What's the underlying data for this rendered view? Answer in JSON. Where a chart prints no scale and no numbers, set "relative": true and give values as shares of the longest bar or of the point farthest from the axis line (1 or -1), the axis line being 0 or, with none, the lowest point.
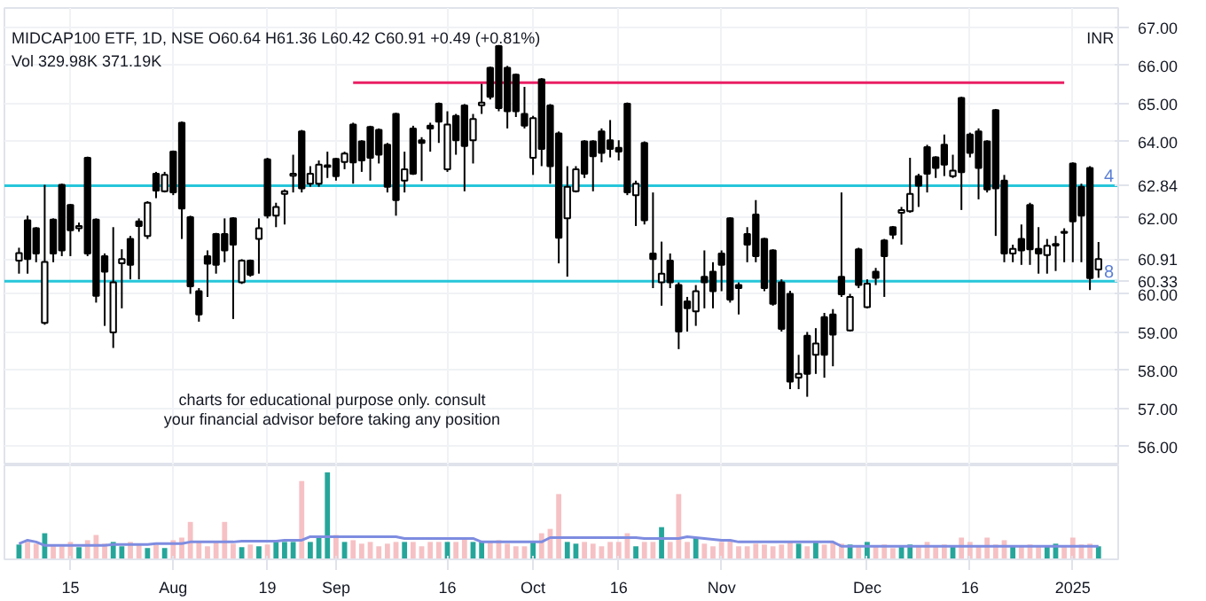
{
  "chart_data": [
    {
      "type": "candlestick",
      "title": "MIDCAP100 ETF, 1D, NSE",
      "subtitle": "O60.64  H61.36  L60.42  C60.91  +0.49 (+0.81%)",
      "annotations": [
        "Vol  329.98K  371.19K",
        "INR",
        "charts for educational purpose only. consult your financial advisor before taking any position",
        {
          "text": "4",
          "y": 62.84
        },
        {
          "text": "8",
          "y": 60.33
        }
      ],
      "categories": [
        null,
        null,
        null,
        null,
        null,
        null,
        "15",
        null,
        null,
        null,
        null,
        null,
        null,
        null,
        null,
        null,
        null,
        null,
        "Aug",
        null,
        null,
        null,
        null,
        null,
        null,
        null,
        null,
        null,
        null,
        "19",
        null,
        null,
        null,
        null,
        null,
        null,
        null,
        "Sep",
        null,
        null,
        null,
        null,
        null,
        null,
        null,
        null,
        null,
        null,
        null,
        null,
        "16",
        null,
        null,
        null,
        null,
        null,
        null,
        null,
        null,
        null,
        "Oct",
        null,
        null,
        null,
        null,
        null,
        null,
        null,
        null,
        null,
        "16",
        null,
        null,
        null,
        null,
        null,
        null,
        null,
        null,
        null,
        null,
        null,
        "Nov",
        null,
        null,
        null,
        null,
        null,
        null,
        null,
        null,
        null,
        null,
        null,
        null,
        null,
        null,
        null,
        null,
        "Dec",
        null,
        null,
        null,
        null,
        null,
        null,
        null,
        null,
        null,
        null,
        null,
        "16",
        null,
        null,
        null,
        null,
        null,
        null,
        null,
        null,
        null,
        null,
        null,
        "2025",
        null,
        null,
        null
      ],
      "ohlc": [
        [
          60.87,
          61.21,
          60.53,
          61.07
        ],
        [
          61.93,
          62.05,
          60.53,
          60.91
        ],
        [
          61.72,
          61.75,
          60.83,
          61.06
        ],
        [
          59.24,
          62.86,
          59.19,
          60.84
        ],
        [
          61.95,
          61.98,
          60.83,
          61.06
        ],
        [
          62.86,
          62.89,
          60.99,
          61.14
        ],
        [
          62.33,
          62.36,
          60.99,
          61.67
        ],
        [
          61.72,
          61.87,
          61.63,
          61.78
        ],
        [
          63.57,
          63.6,
          60.99,
          61.06
        ],
        [
          61.95,
          61.98,
          59.77,
          59.95
        ],
        [
          60.99,
          61.06,
          59.16,
          60.58
        ],
        [
          58.99,
          61.75,
          58.58,
          60.3
        ],
        [
          60.8,
          61.17,
          59.62,
          60.91
        ],
        [
          61.44,
          61.52,
          60.38,
          60.76
        ],
        [
          61.9,
          61.98,
          60.38,
          61.78
        ],
        [
          61.52,
          62.43,
          61.44,
          62.39
        ],
        [
          63.15,
          63.2,
          62.51,
          62.71
        ],
        [
          62.69,
          63.2,
          62.66,
          63.12
        ],
        [
          63.73,
          63.76,
          62.59,
          62.66
        ],
        [
          64.49,
          64.52,
          61.44,
          62.24
        ],
        [
          62.01,
          62.05,
          60.0,
          60.2
        ],
        [
          60.07,
          60.15,
          59.27,
          59.46
        ],
        [
          60.99,
          61.14,
          59.92,
          60.79
        ],
        [
          61.57,
          61.6,
          60.53,
          60.76
        ],
        [
          61.57,
          61.98,
          60.83,
          61.14
        ],
        [
          61.98,
          62.01,
          59.34,
          61.29
        ],
        [
          60.3,
          60.91,
          60.26,
          60.87
        ],
        [
          60.87,
          60.9,
          60.45,
          60.5
        ],
        [
          61.44,
          61.98,
          60.53,
          61.72
        ],
        [
          63.53,
          63.57,
          61.98,
          62.05
        ],
        [
          62.05,
          62.39,
          61.75,
          62.28
        ],
        [
          62.62,
          62.74,
          61.82,
          62.69
        ],
        [
          63.1,
          63.65,
          62.66,
          63.15
        ],
        [
          64.26,
          64.3,
          62.66,
          62.77
        ],
        [
          62.89,
          63.35,
          62.81,
          63.15
        ],
        [
          62.89,
          63.5,
          62.81,
          63.39
        ],
        [
          63.33,
          63.73,
          63.04,
          63.37
        ],
        [
          63.54,
          63.57,
          62.97,
          63.09
        ],
        [
          63.46,
          63.73,
          63.27,
          63.68
        ],
        [
          64.44,
          64.49,
          62.89,
          63.45
        ],
        [
          64.0,
          64.03,
          63.2,
          63.5
        ],
        [
          64.38,
          64.41,
          62.97,
          63.57
        ],
        [
          64.3,
          64.34,
          63.42,
          63.65
        ],
        [
          63.91,
          63.96,
          62.66,
          62.81
        ],
        [
          64.72,
          64.75,
          62.05,
          62.46
        ],
        [
          62.97,
          63.73,
          62.66,
          63.27
        ],
        [
          64.34,
          64.41,
          63.12,
          63.15
        ],
        [
          64.03,
          64.11,
          62.96,
          63.96
        ],
        [
          64.41,
          64.49,
          63.73,
          64.34
        ],
        [
          64.99,
          65.02,
          63.96,
          64.52
        ],
        [
          63.27,
          64.79,
          63.2,
          64.44
        ],
        [
          64.67,
          64.72,
          63.65,
          64.03
        ],
        [
          64.94,
          64.98,
          62.69,
          63.88
        ],
        [
          64.03,
          64.72,
          63.42,
          64.59
        ],
        [
          64.95,
          65.51,
          64.72,
          65.02
        ],
        [
          65.93,
          65.96,
          65.1,
          65.17
        ],
        [
          66.5,
          66.53,
          64.79,
          64.87
        ],
        [
          65.93,
          65.98,
          64.34,
          64.79
        ],
        [
          65.75,
          65.78,
          64.64,
          64.79
        ],
        [
          64.72,
          65.43,
          64.34,
          64.41
        ],
        [
          63.57,
          64.67,
          63.12,
          64.61
        ],
        [
          65.63,
          65.66,
          63.35,
          63.8
        ],
        [
          64.94,
          64.98,
          62.89,
          63.35
        ],
        [
          64.21,
          64.26,
          60.8,
          61.47
        ],
        [
          61.98,
          63.35,
          60.45,
          62.81
        ],
        [
          62.69,
          63.35,
          62.66,
          63.27
        ],
        [
          64.0,
          64.03,
          63.04,
          63.15
        ],
        [
          64.0,
          64.03,
          62.69,
          63.61
        ],
        [
          64.26,
          64.34,
          63.45,
          63.7
        ],
        [
          64.03,
          64.56,
          63.58,
          63.8
        ],
        [
          63.83,
          64.03,
          63.5,
          63.73
        ],
        [
          64.99,
          65.02,
          62.59,
          62.66
        ],
        [
          62.59,
          62.97,
          61.78,
          62.89
        ],
        [
          63.96,
          64.0,
          61.82,
          61.93
        ],
        [
          61.06,
          62.66,
          60.15,
          60.91
        ],
        [
          60.3,
          61.37,
          59.69,
          60.53
        ],
        [
          60.87,
          61.06,
          60.15,
          60.3
        ],
        [
          60.23,
          60.3,
          58.55,
          59.01
        ],
        [
          59.8,
          59.92,
          59.01,
          59.62
        ],
        [
          59.54,
          60.23,
          59.16,
          60.07
        ],
        [
          60.45,
          61.14,
          59.62,
          60.3
        ],
        [
          60.58,
          60.83,
          59.62,
          60.07
        ],
        [
          61.06,
          61.14,
          60.07,
          60.76
        ],
        [
          61.98,
          62.01,
          59.77,
          59.85
        ],
        [
          60.23,
          60.3,
          59.46,
          60.15
        ],
        [
          61.57,
          61.75,
          60.83,
          61.29
        ],
        [
          62.08,
          62.46,
          60.83,
          60.99
        ],
        [
          61.44,
          61.47,
          60.07,
          60.15
        ],
        [
          61.14,
          61.17,
          59.69,
          59.74
        ],
        [
          60.3,
          60.38,
          59.01,
          59.08
        ],
        [
          60.0,
          60.08,
          57.5,
          57.7
        ],
        [
          57.8,
          58.4,
          57.5,
          57.9
        ],
        [
          58.9,
          59.0,
          57.3,
          57.9
        ],
        [
          58.4,
          59.1,
          57.9,
          58.7
        ],
        [
          59.39,
          59.5,
          57.8,
          58.4
        ],
        [
          59.46,
          59.6,
          58.1,
          58.93
        ],
        [
          60.45,
          62.66,
          59.92,
          59.99
        ],
        [
          59.04,
          60.0,
          59.01,
          59.92
        ],
        [
          61.17,
          61.21,
          60.15,
          60.23
        ],
        [
          59.65,
          60.38,
          59.62,
          60.27
        ],
        [
          60.58,
          60.68,
          60.23,
          60.42
        ],
        [
          61.4,
          61.44,
          59.92,
          60.99
        ],
        [
          61.75,
          61.78,
          61.44,
          61.55
        ],
        [
          62.13,
          62.28,
          61.29,
          62.2
        ],
        [
          62.17,
          63.57,
          62.13,
          62.62
        ],
        [
          63.09,
          63.15,
          62.28,
          62.84
        ],
        [
          63.85,
          63.91,
          62.66,
          63.15
        ],
        [
          63.58,
          63.61,
          63.04,
          63.3
        ],
        [
          63.91,
          64.18,
          63.09,
          63.39
        ],
        [
          63.09,
          63.65,
          63.04,
          63.23
        ],
        [
          65.14,
          65.17,
          62.2,
          63.19
        ],
        [
          64.18,
          64.23,
          63.58,
          63.7
        ],
        [
          64.26,
          64.34,
          62.48,
          63.3
        ],
        [
          64.0,
          64.03,
          62.66,
          62.74
        ],
        [
          64.82,
          64.85,
          61.52,
          62.77
        ],
        [
          62.97,
          63.12,
          60.83,
          61.06
        ],
        [
          61.06,
          61.29,
          60.83,
          61.18
        ],
        [
          61.44,
          61.82,
          60.76,
          61.14
        ],
        [
          62.33,
          62.39,
          60.76,
          61.17
        ],
        [
          61.18,
          61.75,
          60.53,
          61.06
        ],
        [
          61.02,
          61.44,
          60.53,
          61.26
        ],
        [
          61.27,
          61.52,
          60.6,
          61.31
        ],
        [
          61.63,
          61.72,
          60.83,
          61.6
        ],
        [
          63.42,
          63.45,
          60.83,
          61.9
        ],
        [
          62.81,
          62.89,
          60.83,
          62.05
        ],
        [
          63.3,
          63.35,
          60.1,
          60.41
        ],
        [
          60.64,
          61.36,
          60.42,
          60.91
        ]
      ],
      "series": [
        {
          "type": "line",
          "color": "#e91e63",
          "values": [
            null,
            null,
            null,
            null,
            null,
            null,
            null,
            null,
            null,
            null,
            null,
            null,
            null,
            null,
            null,
            null,
            null,
            null,
            null,
            null,
            null,
            null,
            null,
            null,
            null,
            null,
            null,
            null,
            null,
            null,
            null,
            null,
            null,
            null,
            null,
            null,
            null,
            null,
            null,
            65.54,
            65.54,
            65.54,
            65.54,
            65.54,
            65.54,
            65.54,
            65.54,
            65.54,
            65.54,
            65.54,
            65.54,
            65.54,
            65.54,
            65.54,
            65.54,
            65.54,
            65.54,
            65.54,
            65.54,
            65.54,
            65.54,
            65.54,
            65.54,
            65.54,
            65.54,
            65.54,
            65.54,
            65.54,
            65.54,
            65.54,
            65.54,
            65.54,
            65.54,
            65.54,
            65.54,
            65.54,
            65.54,
            65.54,
            65.54,
            65.54,
            65.54,
            65.54,
            65.54,
            65.54,
            65.54,
            65.54,
            65.54,
            65.54,
            65.54,
            65.54,
            65.54,
            65.54,
            65.54,
            65.54,
            65.54,
            65.54,
            65.54,
            65.54,
            65.54,
            65.54,
            65.54,
            65.54,
            65.54,
            65.54,
            65.54,
            65.54,
            65.54,
            65.54,
            65.54,
            65.54,
            65.54,
            65.54,
            65.54,
            65.54,
            65.54,
            65.54,
            65.54,
            65.54,
            65.54,
            65.54,
            65.54,
            65.54,
            65.54,
            null,
            null,
            null,
            null
          ]
        }
      ],
      "ref_lines": [
        {
          "axis": "y",
          "value": 62.84,
          "label": "62.84",
          "color": "#26c6da"
        },
        {
          "axis": "y",
          "value": 60.33,
          "label": "60.33",
          "color": "#26c6da"
        }
      ],
      "ylim": [
        55.5,
        67.5
      ],
      "yticks": [
        {
          "value": 56,
          "label": "56.00"
        },
        {
          "value": 57,
          "label": "57.00"
        },
        {
          "value": 58,
          "label": "58.00"
        },
        {
          "value": 59,
          "label": "59.00"
        },
        {
          "value": 60,
          "label": "60.00"
        },
        {
          "value": 60.91,
          "label": "60.91"
        },
        {
          "value": 62,
          "label": "62.00"
        },
        {
          "value": 64,
          "label": "64.00"
        },
        {
          "value": 65,
          "label": "65.00"
        },
        {
          "value": 66,
          "label": "66.00"
        },
        {
          "value": 67,
          "label": "67.00"
        }
      ],
      "grid": true,
      "tick_labels": "y"
    },
    {
      "type": "bar",
      "relative": true,
      "tick_labels": "x",
      "categories": [
        null,
        null,
        null,
        null,
        null,
        null,
        "15",
        null,
        null,
        null,
        null,
        null,
        null,
        null,
        null,
        null,
        null,
        null,
        "Aug",
        null,
        null,
        null,
        null,
        null,
        null,
        null,
        null,
        null,
        null,
        "19",
        null,
        null,
        null,
        null,
        null,
        null,
        null,
        "Sep",
        null,
        null,
        null,
        null,
        null,
        null,
        null,
        null,
        null,
        null,
        null,
        null,
        "16",
        null,
        null,
        null,
        null,
        null,
        null,
        null,
        null,
        null,
        "Oct",
        null,
        null,
        null,
        null,
        null,
        null,
        null,
        null,
        null,
        "16",
        null,
        null,
        null,
        null,
        null,
        null,
        null,
        null,
        null,
        null,
        null,
        "Nov",
        null,
        null,
        null,
        null,
        null,
        null,
        null,
        null,
        null,
        null,
        null,
        null,
        null,
        null,
        null,
        null,
        "Dec",
        null,
        null,
        null,
        null,
        null,
        null,
        null,
        null,
        null,
        null,
        null,
        "16",
        null,
        null,
        null,
        null,
        null,
        null,
        null,
        null,
        null,
        null,
        null,
        "2025",
        null,
        null,
        null
      ],
      "series": [
        {
          "type": "bar",
          "values": [
            0.17,
            0.2,
            0.18,
            0.3,
            0.17,
            0.15,
            0.2,
            0.14,
            0.22,
            0.28,
            0.18,
            0.2,
            0.15,
            0.2,
            0.17,
            0.13,
            0.17,
            0.13,
            0.22,
            0.25,
            0.43,
            0.2,
            0.15,
            0.2,
            0.43,
            0.18,
            0.14,
            0.17,
            0.15,
            0.17,
            0.2,
            0.2,
            0.2,
            0.9,
            0.2,
            0.25,
            1,
            0.28,
            0.2,
            0.22,
            0.18,
            0.2,
            0.15,
            0.18,
            0.2,
            0.2,
            0.2,
            0.15,
            0.2,
            0.2,
            0.2,
            0.2,
            0.25,
            0.2,
            0.2,
            0.2,
            0.22,
            0.18,
            0.15,
            0.15,
            0.2,
            0.3,
            0.35,
            0.75,
            0.2,
            0.18,
            0.2,
            0.18,
            0.15,
            0.2,
            0.2,
            0.3,
            0.15,
            0.2,
            0.2,
            0.37,
            0.2,
            0.75,
            0.2,
            0.25,
            0.18,
            0.15,
            0.2,
            0.22,
            0.15,
            0.15,
            0.18,
            0.17,
            0.15,
            0.17,
            0.2,
            0.18,
            0.15,
            0.2,
            0.17,
            0.2,
            0.18,
            0.17,
            0.15,
            0.2,
            0.15,
            0.17,
            0.13,
            0.15,
            0.17,
            0.15,
            0.2,
            0.15,
            0.17,
            0.15,
            0.25,
            0.2,
            0.15,
            0.25,
            0.17,
            0.22,
            0.15,
            0.15,
            0.17,
            0.15,
            0.15,
            0.18,
            0.15,
            0.25,
            0.17,
            0.18,
            0.15
          ],
          "colors": [
            "#26a69a",
            "#f6c1c4",
            "#f6c1c4",
            "#26a69a",
            "#f6c1c4",
            "#f6c1c4",
            "#f6c1c4",
            "#26a69a",
            "#f6c1c4",
            "#f6c1c4",
            "#f6c1c4",
            "#26a69a",
            "#26a69a",
            "#f6c1c4",
            "#f6c1c4",
            "#26a69a",
            "#f6c1c4",
            "#26a69a",
            "#f6c1c4",
            "#f6c1c4",
            "#f6c1c4",
            "#f6c1c4",
            "#f6c1c4",
            "#f6c1c4",
            "#f6c1c4",
            "#f6c1c4",
            "#26a69a",
            "#f6c1c4",
            "#26a69a",
            "#f6c1c4",
            "#26a69a",
            "#26a69a",
            "#26a69a",
            "#f6c1c4",
            "#26a69a",
            "#26a69a",
            "#26a69a",
            "#f6c1c4",
            "#26a69a",
            "#f6c1c4",
            "#f6c1c4",
            "#f6c1c4",
            "#f6c1c4",
            "#f6c1c4",
            "#f6c1c4",
            "#26a69a",
            "#f6c1c4",
            "#f6c1c4",
            "#f6c1c4",
            "#f6c1c4",
            "#26a69a",
            "#f6c1c4",
            "#f6c1c4",
            "#26a69a",
            "#26a69a",
            "#f6c1c4",
            "#f6c1c4",
            "#f6c1c4",
            "#f6c1c4",
            "#f6c1c4",
            "#26a69a",
            "#f6c1c4",
            "#f6c1c4",
            "#f6c1c4",
            "#26a69a",
            "#26a69a",
            "#f6c1c4",
            "#f6c1c4",
            "#f6c1c4",
            "#f6c1c4",
            "#f6c1c4",
            "#f6c1c4",
            "#26a69a",
            "#f6c1c4",
            "#f6c1c4",
            "#26a69a",
            "#f6c1c4",
            "#f6c1c4",
            "#f6c1c4",
            "#26a69a",
            "#f6c1c4",
            "#f6c1c4",
            "#f6c1c4",
            "#f6c1c4",
            "#f6c1c4",
            "#f6c1c4",
            "#f6c1c4",
            "#f6c1c4",
            "#f6c1c4",
            "#f6c1c4",
            "#f6c1c4",
            "#26a69a",
            "#f6c1c4",
            "#26a69a",
            "#f6c1c4",
            "#f6c1c4",
            "#f6c1c4",
            "#26a69a",
            "#f6c1c4",
            "#26a69a",
            "#f6c1c4",
            "#f6c1c4",
            "#f6c1c4",
            "#26a69a",
            "#26a69a",
            "#f6c1c4",
            "#f6c1c4",
            "#f6c1c4",
            "#f6c1c4",
            "#26a69a",
            "#f6c1c4",
            "#f6c1c4",
            "#f6c1c4",
            "#f6c1c4",
            "#f6c1c4",
            "#f6c1c4",
            "#26a69a",
            "#f6c1c4",
            "#f6c1c4",
            "#f6c1c4",
            "#26a69a",
            "#26a69a",
            "#f6c1c4",
            "#f6c1c4",
            "#f6c1c4",
            "#f6c1c4",
            "#26a69a"
          ]
        },
        {
          "type": "line",
          "color": "#7e8ce0",
          "values": [
            0.18,
            0.22,
            0.2,
            0.16,
            0.16,
            0.16,
            0.16,
            0.16,
            0.16,
            0.16,
            0.16,
            0.17,
            0.17,
            0.17,
            0.17,
            0.17,
            0.18,
            0.18,
            0.18,
            0.18,
            0.2,
            0.2,
            0.2,
            0.2,
            0.2,
            0.2,
            0.21,
            0.21,
            0.21,
            0.21,
            0.21,
            0.22,
            0.22,
            0.22,
            0.26,
            0.26,
            0.26,
            0.26,
            0.26,
            0.26,
            0.26,
            0.26,
            0.26,
            0.26,
            0.26,
            0.24,
            0.24,
            0.24,
            0.24,
            0.24,
            0.24,
            0.24,
            0.24,
            0.24,
            0.2,
            0.2,
            0.2,
            0.2,
            0.2,
            0.2,
            0.2,
            0.2,
            0.25,
            0.25,
            0.25,
            0.25,
            0.25,
            0.25,
            0.25,
            0.25,
            0.25,
            0.25,
            0.25,
            0.24,
            0.24,
            0.24,
            0.24,
            0.24,
            0.26,
            0.25,
            0.24,
            0.23,
            0.22,
            0.22,
            0.2,
            0.2,
            0.2,
            0.2,
            0.2,
            0.2,
            0.2,
            0.2,
            0.2,
            0.2,
            0.2,
            0.2,
            0.15,
            0.15,
            0.15,
            0.15,
            0.15,
            0.15,
            0.15,
            0.15,
            0.15,
            0.15,
            0.15,
            0.15,
            0.15,
            0.15,
            0.15,
            0.15,
            0.15,
            0.15,
            0.15,
            0.15,
            0.15,
            0.15,
            0.15,
            0.15,
            0.15,
            0.15,
            0.15,
            0.15,
            0.15,
            0.15,
            0.15
          ]
        }
      ],
      "grid": "x"
    }
  ]
}
